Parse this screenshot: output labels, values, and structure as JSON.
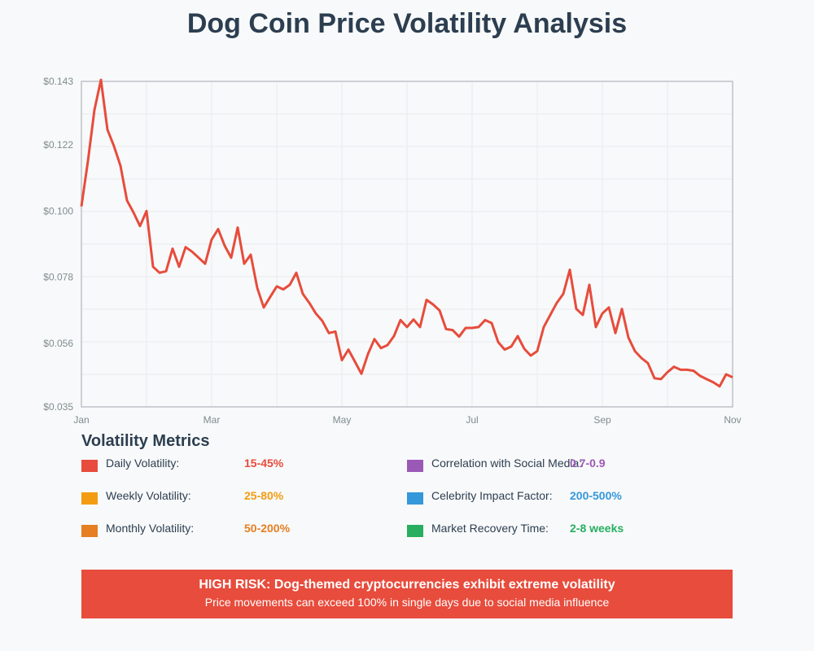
{
  "title": "Dog Coin Price Volatility Analysis",
  "colors": {
    "line": "#e74c3c",
    "grid": "#ecf0f1",
    "axis": "#bdc3c7",
    "tick": "#7f8c8d",
    "title": "#2c3e50"
  },
  "chart_data": {
    "type": "line",
    "title": "Dog Coin Price Volatility Analysis",
    "xlabel": "",
    "ylabel": "",
    "grid": true,
    "x_range": [
      0,
      100
    ],
    "xlim_labels": [
      "Jan",
      "Mar",
      "May",
      "Jul",
      "Sep",
      "Nov"
    ],
    "x_tick_positions": [
      0,
      20,
      40,
      60,
      80,
      100
    ],
    "ylim": [
      0.035,
      0.143
    ],
    "y_ticks": [
      0.035,
      0.056,
      0.078,
      0.1,
      0.122,
      0.143
    ],
    "y_tick_labels": [
      "$0.035",
      "$0.056",
      "$0.078",
      "$0.100",
      "$0.122",
      "$0.143"
    ],
    "series": [
      {
        "name": "Dog Coin Price",
        "x": [
          0,
          1,
          2,
          3,
          4,
          5,
          6,
          7,
          8,
          9,
          10,
          11,
          12,
          13,
          14,
          15,
          16,
          17,
          18,
          19,
          20,
          21,
          22,
          23,
          24,
          25,
          26,
          27,
          28,
          29,
          30,
          31,
          32,
          33,
          34,
          35,
          36,
          37,
          38,
          39,
          40,
          41,
          42,
          43,
          44,
          45,
          46,
          47,
          48,
          49,
          50,
          51,
          52,
          53,
          54,
          55,
          56,
          57,
          58,
          59,
          60,
          61,
          62,
          63,
          64,
          65,
          66,
          67,
          68,
          69,
          70,
          71,
          72,
          73,
          74,
          75,
          76,
          77,
          78,
          79,
          80,
          81,
          82,
          83,
          84,
          85,
          86,
          87,
          88,
          89,
          90,
          91,
          92,
          93,
          94,
          95,
          96,
          97,
          98,
          99,
          100
        ],
        "values": [
          0.1015,
          0.1165,
          0.1335,
          0.1435,
          0.127,
          0.1215,
          0.115,
          0.1035,
          0.0995,
          0.095,
          0.1,
          0.0815,
          0.0795,
          0.08,
          0.0875,
          0.0815,
          0.088,
          0.0865,
          0.0845,
          0.0825,
          0.0905,
          0.094,
          0.0885,
          0.0845,
          0.0945,
          0.0825,
          0.0855,
          0.0745,
          0.068,
          0.0715,
          0.075,
          0.074,
          0.0755,
          0.0795,
          0.0725,
          0.0695,
          0.066,
          0.0635,
          0.0595,
          0.06,
          0.0505,
          0.054,
          0.05,
          0.046,
          0.0525,
          0.0575,
          0.0545,
          0.0555,
          0.0585,
          0.0638,
          0.0615,
          0.064,
          0.0615,
          0.0705,
          0.069,
          0.067,
          0.0608,
          0.0605,
          0.0583,
          0.0612,
          0.0612,
          0.0615,
          0.0638,
          0.0628,
          0.0565,
          0.054,
          0.055,
          0.0585,
          0.0543,
          0.052,
          0.0535,
          0.0615,
          0.0655,
          0.0695,
          0.0725,
          0.0805,
          0.0675,
          0.0655,
          0.0755,
          0.0615,
          0.066,
          0.068,
          0.0595,
          0.0675,
          0.058,
          0.0535,
          0.0512,
          0.0495,
          0.0445,
          0.0442,
          0.0465,
          0.0483,
          0.0473,
          0.0473,
          0.047,
          0.0453,
          0.0442,
          0.0432,
          0.0418,
          0.0458,
          0.0448
        ]
      }
    ]
  },
  "metrics": {
    "heading": "Volatility Metrics",
    "items": [
      {
        "label": "Daily Volatility:",
        "value": "15-45%",
        "color": "#e74c3c"
      },
      {
        "label": "Weekly Volatility:",
        "value": "25-80%",
        "color": "#f39c12"
      },
      {
        "label": "Monthly Volatility:",
        "value": "50-200%",
        "color": "#e67e22"
      },
      {
        "label": "Correlation with Social Media:",
        "value": "0.7-0.9",
        "color": "#9b59b6"
      },
      {
        "label": "Celebrity Impact Factor:",
        "value": "200-500%",
        "color": "#3498db"
      },
      {
        "label": "Market Recovery Time:",
        "value": "2-8 weeks",
        "color": "#27ae60"
      }
    ]
  },
  "risk": {
    "title": "HIGH RISK: Dog-themed cryptocurrencies exhibit extreme volatility",
    "subtitle": "Price movements can exceed 100% in single days due to social media influence"
  }
}
